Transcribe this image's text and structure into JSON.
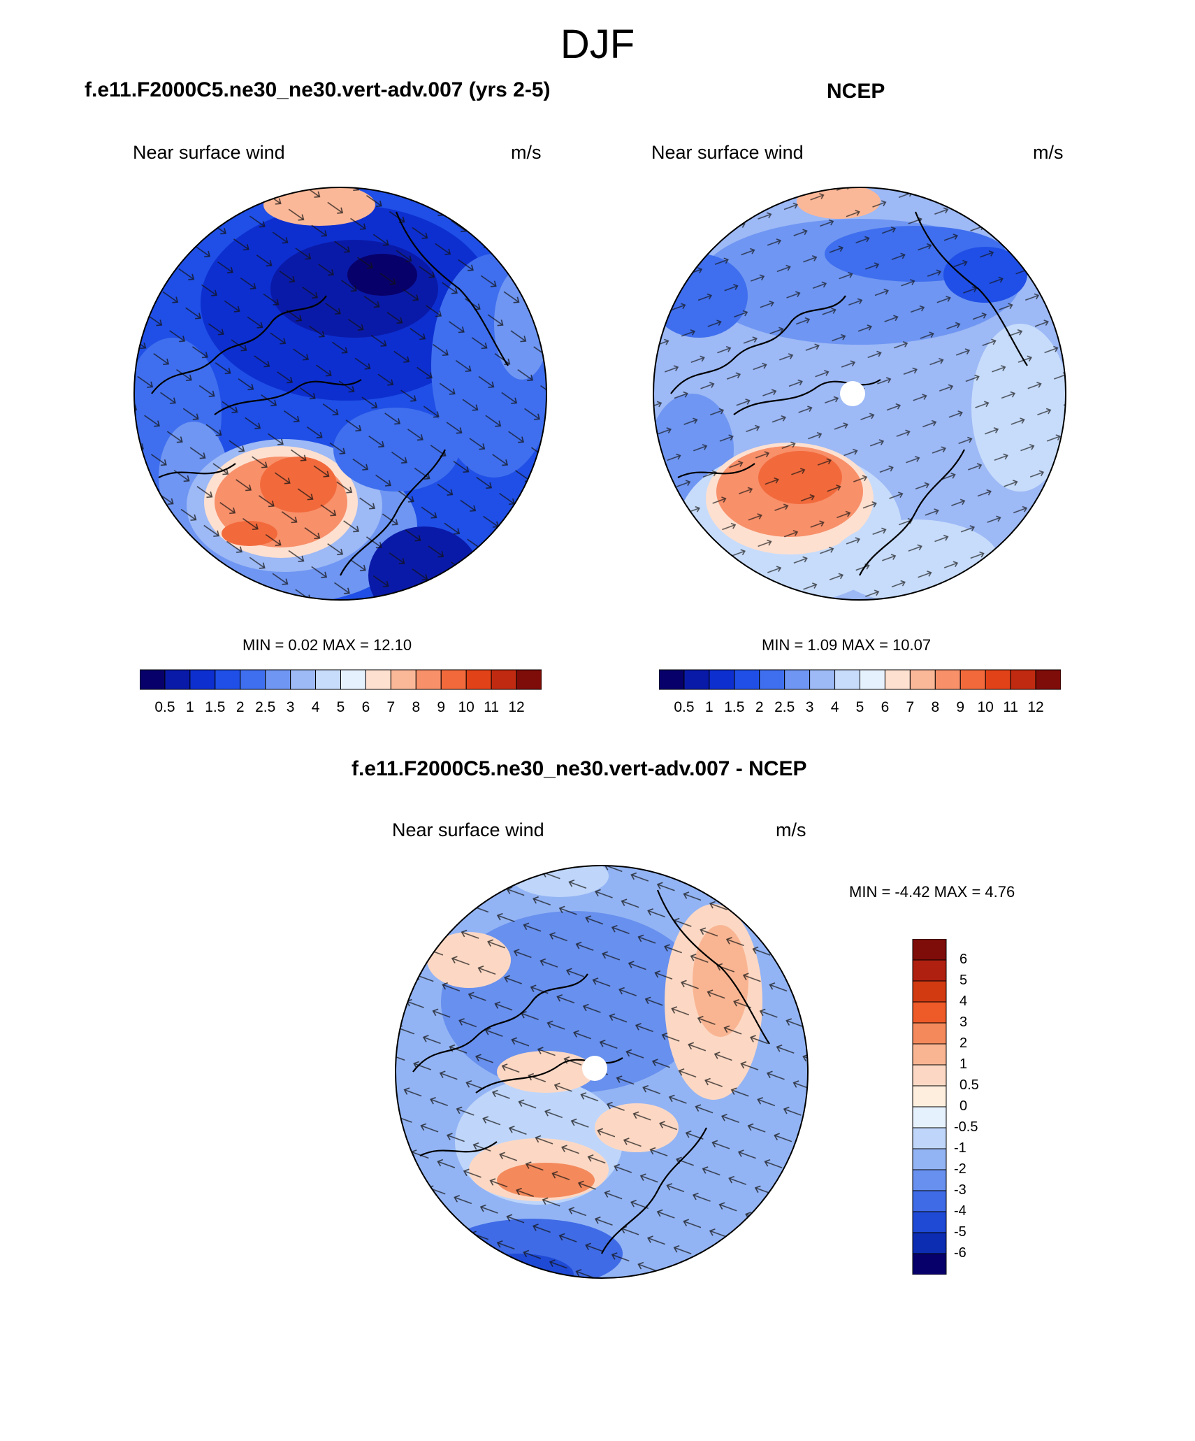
{
  "main_title": "DJF",
  "panels": [
    {
      "title": "f.e11.F2000C5.ne30_ne30.vert-adv.007 (yrs 2-5)",
      "left_label": "Near surface wind",
      "right_label": "m/s",
      "minmax": "MIN =   0.02 MAX =  12.10"
    },
    {
      "title": "NCEP",
      "left_label": "Near surface wind",
      "right_label": "m/s",
      "minmax": "MIN =   1.09 MAX =  10.07"
    },
    {
      "title": "f.e11.F2000C5.ne30_ne30.vert-adv.007 - NCEP",
      "left_label": "Near surface wind",
      "right_label": "m/s",
      "minmax": "MIN =  -4.42 MAX =   4.76"
    }
  ],
  "wind_scale": {
    "labels": [
      "0.5",
      "1",
      "1.5",
      "2",
      "2.5",
      "3",
      "4",
      "5",
      "6",
      "7",
      "8",
      "9",
      "10",
      "11",
      "12"
    ],
    "colors": [
      "#08006a",
      "#0a1aa8",
      "#0d2fd0",
      "#1f4fe6",
      "#3f6fee",
      "#6f96f2",
      "#9db9f6",
      "#c7dcfb",
      "#e6f1fe",
      "#fde0d0",
      "#fbb898",
      "#f8906a",
      "#f26a3c",
      "#e24218",
      "#c02a10",
      "#7e0c08"
    ]
  },
  "diff_scale": {
    "labels": [
      "6",
      "5",
      "4",
      "3",
      "2",
      "1",
      "0.5",
      "0",
      "-0.5",
      "-1",
      "-2",
      "-3",
      "-4",
      "-5",
      "-6"
    ],
    "colors": [
      "#7e0c08",
      "#b02010",
      "#d23a12",
      "#ee5a28",
      "#f48a5c",
      "#f9b592",
      "#fcd8c4",
      "#feeede",
      "#e6f1fe",
      "#bfd6fa",
      "#93b4f4",
      "#6890ee",
      "#3f6be6",
      "#1f4ad6",
      "#0c2cb2",
      "#08006a"
    ]
  }
}
